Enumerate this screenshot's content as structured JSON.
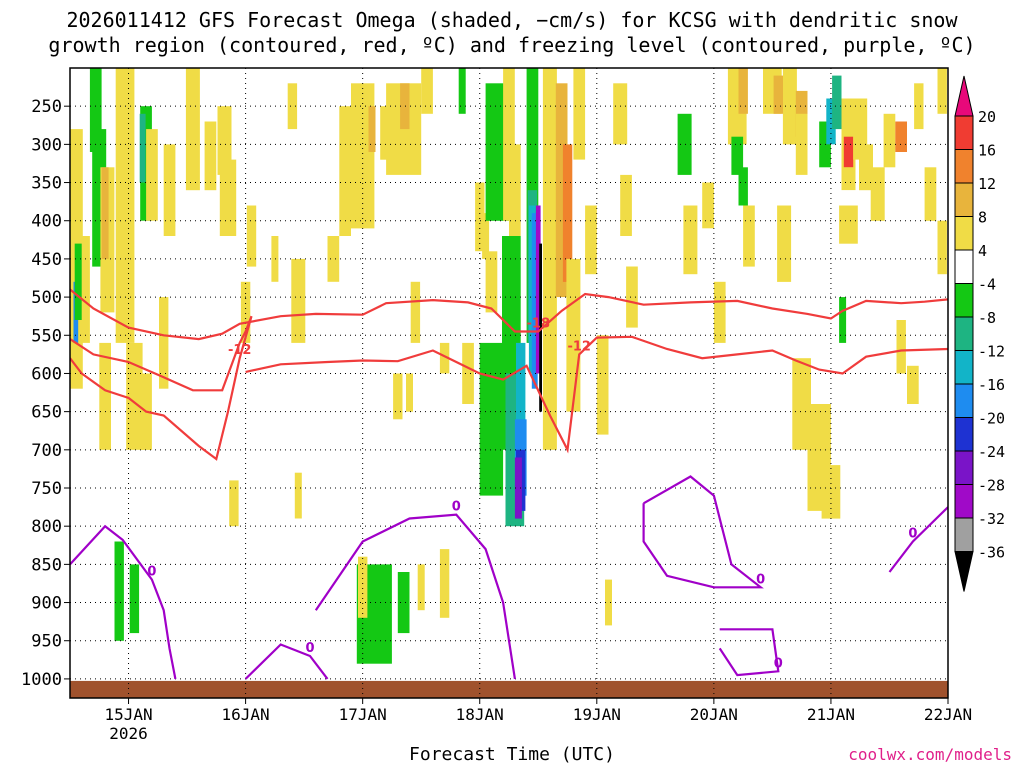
{
  "header": {
    "line1": "2026011412 GFS Forecast Omega (shaded, −cm/s) for KCSG with dendritic snow",
    "line2": "growth region (contoured, red, ºC) and freezing level (contoured, purple, ºC)"
  },
  "footer": {
    "xlabel": "Forecast Time (UTC)",
    "credit": "coolwx.com/models"
  },
  "chart_data": {
    "type": "heatmap",
    "title": "2026011412 GFS Forecast Omega (shaded, −cm/s) for KCSG with dendritic snow growth region (contoured, red, ºC) and freezing level (contoured, purple, ºC)",
    "xlabel": "Forecast Time (UTC)",
    "ylabel": "",
    "x_ticks": [
      "15JAN",
      "16JAN",
      "17JAN",
      "18JAN",
      "19JAN",
      "20JAN",
      "21JAN",
      "22JAN"
    ],
    "x_tick_days": [
      15,
      16,
      17,
      18,
      19,
      20,
      21,
      22
    ],
    "x_year_label": "2026",
    "xlim": [
      14.5,
      22
    ],
    "y_ticks": [
      250,
      300,
      350,
      400,
      450,
      500,
      550,
      600,
      650,
      700,
      750,
      800,
      850,
      900,
      950,
      1000
    ],
    "ylim": [
      1025,
      200
    ],
    "colorbar": {
      "levels": [
        "20",
        "16",
        "12",
        "8",
        "4",
        "-4",
        "-8",
        "-12",
        "-16",
        "-20",
        "-24",
        "-28",
        "-32",
        "-36"
      ],
      "colors": [
        "#e8097a",
        "#f03c32",
        "#f0822d",
        "#e8b43c",
        "#f0dc46",
        "#ffffff",
        "#14c814",
        "#1eb482",
        "#12b4c8",
        "#1e8cf0",
        "#1e32d2",
        "#7a14c8",
        "#a00ac8",
        "#a0a0a0",
        "#000000"
      ]
    },
    "contours": [
      {
        "name": "dgz_top",
        "label": "-18",
        "color": "#f03c3c",
        "points": [
          [
            14.5,
            490
          ],
          [
            14.7,
            515
          ],
          [
            15.0,
            540
          ],
          [
            15.3,
            550
          ],
          [
            15.6,
            555
          ],
          [
            15.8,
            548
          ],
          [
            15.95,
            535
          ],
          [
            16.3,
            525
          ],
          [
            16.6,
            522
          ],
          [
            17.0,
            523
          ],
          [
            17.2,
            508
          ],
          [
            17.6,
            504
          ],
          [
            17.9,
            507
          ],
          [
            18.1,
            515
          ],
          [
            18.3,
            545
          ],
          [
            18.5,
            545
          ],
          [
            18.7,
            518
          ],
          [
            18.9,
            496
          ],
          [
            19.1,
            500
          ],
          [
            19.4,
            510
          ],
          [
            19.8,
            507
          ],
          [
            20.2,
            505
          ],
          [
            20.5,
            515
          ],
          [
            20.8,
            522
          ],
          [
            21.0,
            528
          ],
          [
            21.1,
            518
          ],
          [
            21.3,
            505
          ],
          [
            21.6,
            508
          ],
          [
            21.8,
            506
          ],
          [
            22.0,
            503
          ]
        ]
      },
      {
        "name": "dgz_bottom",
        "label": "-12",
        "color": "#f03c3c",
        "points": [
          [
            14.5,
            555
          ],
          [
            14.7,
            575
          ],
          [
            15.0,
            585
          ],
          [
            15.3,
            605
          ],
          [
            15.55,
            622
          ],
          [
            15.8,
            622
          ],
          [
            15.95,
            560
          ],
          [
            16.0,
            545
          ],
          [
            16.05,
            525
          ],
          [
            15.95,
            580
          ],
          [
            15.85,
            650
          ],
          [
            15.75,
            712
          ],
          [
            15.6,
            695
          ],
          [
            15.3,
            655
          ],
          [
            15.15,
            650
          ],
          [
            15.0,
            632
          ],
          [
            14.8,
            622
          ],
          [
            14.6,
            600
          ],
          [
            14.5,
            580
          ]
        ]
      },
      {
        "name": "dgz_bottom_east",
        "label": "-12",
        "color": "#f03c3c",
        "points": [
          [
            16.0,
            598
          ],
          [
            16.3,
            588
          ],
          [
            16.7,
            585
          ],
          [
            17.0,
            583
          ],
          [
            17.3,
            584
          ],
          [
            17.6,
            570
          ],
          [
            17.8,
            585
          ],
          [
            18.0,
            600
          ],
          [
            18.2,
            608
          ],
          [
            18.4,
            590
          ],
          [
            18.6,
            655
          ],
          [
            18.75,
            700
          ],
          [
            18.85,
            575
          ],
          [
            19.0,
            553
          ],
          [
            19.3,
            552
          ],
          [
            19.6,
            568
          ],
          [
            19.9,
            580
          ],
          [
            20.2,
            575
          ],
          [
            20.5,
            570
          ],
          [
            20.7,
            583
          ],
          [
            20.9,
            595
          ],
          [
            21.1,
            600
          ],
          [
            21.3,
            578
          ],
          [
            21.6,
            570
          ],
          [
            22.0,
            568
          ]
        ]
      },
      {
        "name": "freezing_w",
        "label": "0",
        "color": "#a000c8",
        "points": [
          [
            14.5,
            850
          ],
          [
            14.8,
            800
          ],
          [
            14.95,
            818
          ],
          [
            15.2,
            870
          ],
          [
            15.3,
            910
          ],
          [
            15.35,
            960
          ],
          [
            15.4,
            1000
          ]
        ]
      },
      {
        "name": "freezing_mid",
        "label": "0",
        "color": "#a000c8",
        "points": [
          [
            16.0,
            1000
          ],
          [
            16.3,
            955
          ],
          [
            16.55,
            970
          ],
          [
            16.7,
            1000
          ]
        ]
      },
      {
        "name": "freezing_c",
        "label": "0",
        "color": "#a000c8",
        "points": [
          [
            16.6,
            910
          ],
          [
            17.0,
            820
          ],
          [
            17.4,
            790
          ],
          [
            17.8,
            785
          ],
          [
            18.05,
            830
          ],
          [
            18.2,
            900
          ],
          [
            18.3,
            1000
          ]
        ]
      },
      {
        "name": "freezing_e1",
        "label": "0",
        "color": "#a000c8",
        "points": [
          [
            19.4,
            770
          ],
          [
            19.8,
            735
          ],
          [
            20.0,
            760
          ],
          [
            20.15,
            850
          ],
          [
            20.4,
            880
          ],
          [
            20.0,
            880
          ],
          [
            19.6,
            865
          ],
          [
            19.4,
            820
          ],
          [
            19.4,
            770
          ]
        ]
      },
      {
        "name": "freezing_e2",
        "label": "0",
        "color": "#a000c8",
        "points": [
          [
            20.05,
            935
          ],
          [
            20.5,
            935
          ],
          [
            20.55,
            990
          ],
          [
            20.2,
            995
          ],
          [
            20.05,
            960
          ]
        ]
      },
      {
        "name": "freezing_e3",
        "label": "0",
        "color": "#a000c8",
        "points": [
          [
            21.5,
            860
          ],
          [
            21.7,
            820
          ],
          [
            22.0,
            775
          ]
        ]
      }
    ]
  }
}
